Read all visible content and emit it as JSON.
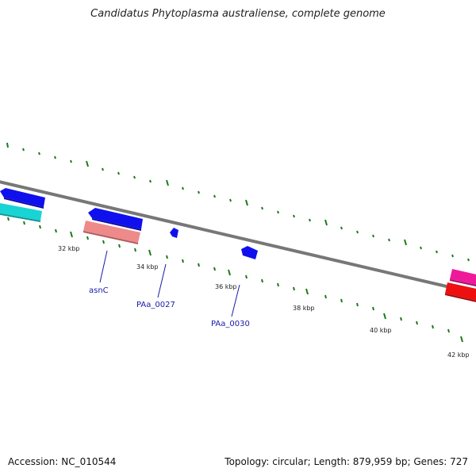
{
  "title": "Candidatus Phytoplasma australiense, complete genome",
  "footer": {
    "accession": "Accession: NC_010544",
    "summary": "Topology: circular; Length: 879,959 bp; Genes: 727"
  },
  "scale_labels": [
    "32 kbp",
    "34 kbp",
    "36 kbp",
    "38 kbp",
    "40 kbp",
    "42 kbp"
  ],
  "gene_labels": [
    "asnC",
    "PAa_0027",
    "PAa_0030"
  ],
  "colors": {
    "backbone": "#777777",
    "tick": "#1a7a1a",
    "cds_blue": "#1010ee",
    "cyan": "#18d4d4",
    "salmon": "#ee8a8a",
    "magenta": "#ee1a9a",
    "red": "#ee1010",
    "label": "#1a1aaa"
  }
}
